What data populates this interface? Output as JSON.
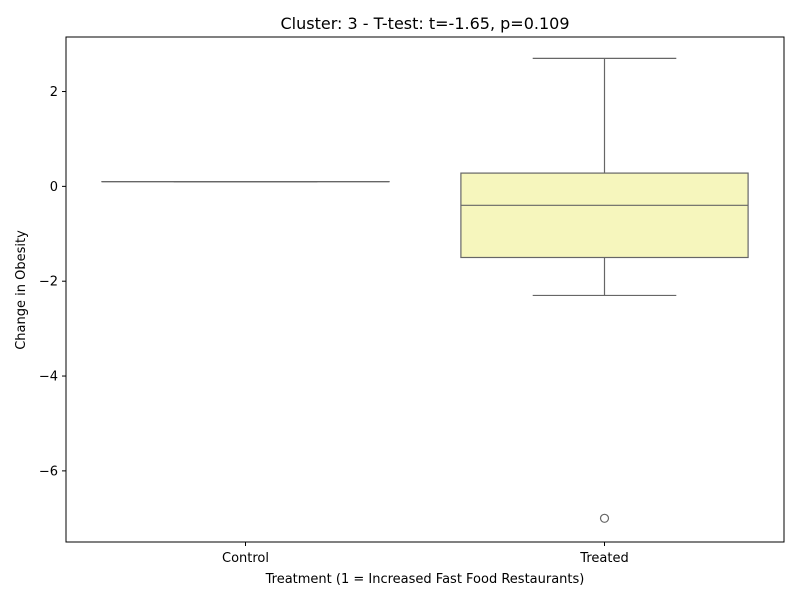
{
  "chart_data": {
    "type": "box",
    "title": "Cluster: 3 - T-test: t=-1.65, p=0.109",
    "xlabel": "Treatment (1 = Increased Fast Food Restaurants)",
    "ylabel": "Change in Obesity",
    "categories": [
      "Control",
      "Treated"
    ],
    "ylim": [
      -7.5,
      3.15
    ],
    "yticks": [
      2,
      0,
      -2,
      -4,
      -6
    ],
    "ytick_labels": [
      "2",
      "0",
      "−2",
      "−4",
      "−6"
    ],
    "grid": false,
    "boxes": [
      {
        "category": "Control",
        "whisker_low": 0.1,
        "q1": 0.1,
        "median": 0.1,
        "q3": 0.1,
        "whisker_high": 0.1,
        "outliers": [],
        "color": "#f6f6bd"
      },
      {
        "category": "Treated",
        "whisker_low": -2.3,
        "q1": -1.5,
        "median": -0.4,
        "q3": 0.28,
        "whisker_high": 2.7,
        "outliers": [
          -7.0
        ],
        "color": "#f6f6bd"
      }
    ],
    "colors": {
      "box_edge": "#666666",
      "box_fill": "#f6f6bd",
      "axis": "#000000"
    }
  }
}
